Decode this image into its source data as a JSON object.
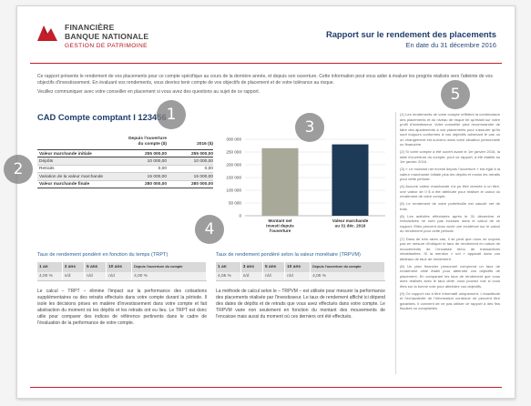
{
  "header": {
    "logo_line1": "FINANCIÈRE",
    "logo_line2": "BANQUE NATIONALE",
    "logo_line3": "GESTION DE PATRIMOINE",
    "title": "Rapport sur le rendement des placements",
    "subtitle": "En date du 31 décembre 2016"
  },
  "intro": {
    "paragraph1": "Ce rapport présente le rendement de vos placements pour ce compte spécifique au cours de la dernière année, et depuis son ouverture. Cette information peut vous aider à évaluer les progrès réalisés vers l'atteinte de vos objectifs d'investissement. En évaluant vos rendements, vous devriez tenir compte de vos objectifs de placement et de votre tolérance au risque.",
    "paragraph2": "Veuillez communiquer avec votre conseiller en placement si vous avez des questions au sujet de ce rapport."
  },
  "account": {
    "title": "CAD Compte comptant  I  123456"
  },
  "values_table": {
    "col1_header": "Depuis l'ouverture du compte ($)",
    "col2_header": "2016 ($)",
    "rows": [
      {
        "label": "Valeur marchande initiale",
        "since_open": "255 000,00",
        "year": "255 000,00",
        "style": "strong"
      },
      {
        "label": "Dépôts",
        "since_open": "10 000,00",
        "year": "10 000,00",
        "style": "alt"
      },
      {
        "label": "Retraits",
        "since_open": "0,00",
        "year": "0,00",
        "style": ""
      },
      {
        "label": "Variation de la valeur marchande",
        "since_open": "15 000,00",
        "year": "15 000,00",
        "style": "alt"
      },
      {
        "label": "Valeur marchande finale",
        "since_open": "280 000,00",
        "year": "280 000,00",
        "style": "strong"
      }
    ]
  },
  "chart_data": {
    "type": "bar",
    "categories": [
      "Montant net investi depuis l'ouverture",
      "Valeur marchande au 31 déc. 2016"
    ],
    "values": [
      265000,
      280000
    ],
    "colors": [
      "#a9a99a",
      "#1d3a57"
    ],
    "ylim": [
      0,
      300000
    ],
    "yticks": [
      0,
      50000,
      100000,
      150000,
      200000,
      250000,
      300000
    ],
    "ytick_labels": [
      "0",
      "50 000",
      "100 000",
      "150 000",
      "200 000",
      "250 000",
      "300 000"
    ],
    "grid": true,
    "title": "",
    "xlabel": "",
    "ylabel": ""
  },
  "trpt": {
    "title": "Taux de rendement pondéré en fonction du temps (TRPT)",
    "headers": [
      "1 an",
      "3 ans",
      "5 ans",
      "10 ans",
      "Depuis l'ouverture du compte"
    ],
    "values": [
      "4,00 %",
      "n/d",
      "n/d",
      "n/d",
      "4,00 %"
    ],
    "description": "Le calcul – TRPT – élimine l'impact sur la performance des cotisations supplémentaires ou des retraits effectués dans votre compte durant la période. Il isole les décisions prises en matière d'investissement dans votre compte et fait abstraction du moment où les dépôts et les retraits ont eu lieu. Le TRPT est donc utile pour comparer des indices de référence pertinents dans le cadre de l'évaluation de la performance de votre compte."
  },
  "trpvm": {
    "title": "Taux de rendement pondéré selon la valeur monétaire (TRPVM)",
    "headers": [
      "1 an",
      "3 ans",
      "5 ans",
      "10 ans",
      "Depuis l'ouverture du compte"
    ],
    "values": [
      "4,05 %",
      "n/d",
      "n/d",
      "n/d",
      "4,05 %"
    ],
    "description": "La méthode de calcul selon le – TRPVM – est utilisée pour mesurer la performance des placements réalisée par l'investisseur. Le taux de rendement affiché ici dépend des dates de dépôts et de retraits que vous avez effectués dans votre compte. Le TRPVM varie non seulement en fonction du montant des mouvements de l'encaisse mais aussi du moment où ces derniers ont été effectués."
  },
  "notes": [
    "(1) Les rendements de votre compte reflètent la combinaison des placements et du niveau de risque tel qu'établi sur votre profil d'investisseur. Votre conseiller peut recommander de faire des ajustements à vos placements pour s'assurer qu'ils sont toujours conformes à vos objectifs advenant le cas où un changement est survenu dans votre situation personnelle ou financière.",
    "(2) Si votre compte a été ouvert avant le 1er janvier 2016, la date d'ouverture du compte, pour ce rapport, a été établie au 1er janvier 2016.",
    "(3) « Le montant net investi depuis l'ouverture » est égal à la valeur marchande initiale plus les dépôts et moins les retraits pour cette période.",
    "(4) Aucune valeur marchande n'a pu être donnée à un titre, une valeur de 0 $ a été attribuée pour réaliser le calcul du rendement de votre compte.",
    "(5) Le rendement de votre portefeuille est calculé net de frais.",
    "(6) Les activités effectuées après le 31 décembre et rétroactives ne sont pas incluses dans le calcul de ce rapport. Elles peuvent donc avoir une incidence sur le calcul du rendement pour cette période.",
    "(7) Dans de très rares cas, il se peut que nous ne soyons pas en mesure d'indiquer le taux de rendement en raison de mouvements de l'encaisse et/ou de transactions inhabituelles. Si la mention « n/d » apparaît dans vos tableaux de taux de rendement.",
    "(8) Un plan financier personnel comprend un taux de rendement cible établi pour atteindre vos objectifs de placement. En comparant les taux de rendement que vous avez réalisés avec le taux ciblé, vous pouvez voir si vous êtes sur la bonne voie pour atteindre vos objectifs.",
    "(9) Ce rapport est à titre informatif uniquement. L'exactitude et l'exhaustivité de l'information contenue ne peuvent être garanties. Il convient de ne pas utiliser ce rapport à des fins fiscales ou comptables."
  ],
  "callouts": [
    "1",
    "2",
    "3",
    "4",
    "5"
  ],
  "colors": {
    "brand_red": "#c41e2a",
    "title_blue": "#1f3d6b",
    "rate_title_blue": "#2b5f93",
    "callout_gray": "#8c8c8c"
  }
}
